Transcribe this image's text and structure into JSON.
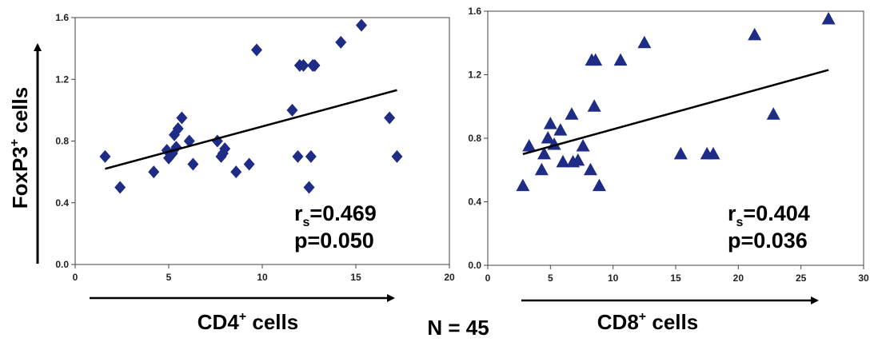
{
  "chart_data": [
    {
      "type": "scatter",
      "marker": "diamond",
      "marker_color": "#1f2c86",
      "xlabel_main": "CD4",
      "xlabel_sup": "+",
      "xlabel_rest": " cells",
      "xlim": [
        0,
        20
      ],
      "ylim": [
        0,
        1.6
      ],
      "x_ticks": [
        "0",
        "5",
        "10",
        "15",
        "20"
      ],
      "y_ticks": [
        "0.0",
        "0.4",
        "0.8",
        "1.2",
        "1.6"
      ],
      "x": [
        1.6,
        2.4,
        4.2,
        4.9,
        5.0,
        5.2,
        5.3,
        5.4,
        5.5,
        5.7,
        6.1,
        6.3,
        7.6,
        7.8,
        7.9,
        8.0,
        8.6,
        9.3,
        9.7,
        11.6,
        11.9,
        12.0,
        12.2,
        12.5,
        12.6,
        12.7,
        12.8,
        14.2,
        15.3,
        16.8,
        17.2
      ],
      "y": [
        0.7,
        0.5,
        0.6,
        0.74,
        0.69,
        0.72,
        0.84,
        0.76,
        0.88,
        0.95,
        0.8,
        0.65,
        0.8,
        0.7,
        0.72,
        0.75,
        0.6,
        0.65,
        1.39,
        1.0,
        0.7,
        1.29,
        1.29,
        0.5,
        0.7,
        1.29,
        1.29,
        1.44,
        1.55,
        0.95,
        0.7
      ],
      "fit_line": {
        "x": [
          1.6,
          17.2
        ],
        "y": [
          0.62,
          1.13
        ]
      },
      "stat_label": "r",
      "stat_sub": "s",
      "stat_value": "=0.469",
      "p_value": "p=0.050"
    },
    {
      "type": "scatter",
      "marker": "triangle",
      "marker_color": "#1f2c86",
      "xlabel_main": "CD8",
      "xlabel_sup": "+",
      "xlabel_rest": " cells",
      "xlim": [
        0,
        30
      ],
      "ylim": [
        0,
        1.6
      ],
      "x_ticks": [
        "0",
        "5",
        "10",
        "15",
        "20",
        "25",
        "30"
      ],
      "y_ticks": [
        "0.0",
        "0.4",
        "0.8",
        "1.2",
        "1.6"
      ],
      "x": [
        2.8,
        3.3,
        4.3,
        4.5,
        4.8,
        5.0,
        5.3,
        5.8,
        6.0,
        6.7,
        6.8,
        7.2,
        7.6,
        8.2,
        8.3,
        8.5,
        8.6,
        8.9,
        10.6,
        12.5,
        15.4,
        17.5,
        18.0,
        21.3,
        22.8,
        27.2
      ],
      "y": [
        0.5,
        0.75,
        0.6,
        0.7,
        0.8,
        0.89,
        0.76,
        0.85,
        0.65,
        0.95,
        0.65,
        0.66,
        0.75,
        0.6,
        1.29,
        1.0,
        1.29,
        0.5,
        1.29,
        1.4,
        0.7,
        0.7,
        0.7,
        1.45,
        0.95,
        1.55
      ],
      "fit_line": {
        "x": [
          2.8,
          27.2
        ],
        "y": [
          0.7,
          1.23
        ]
      },
      "stat_label": "r",
      "stat_sub": "s",
      "stat_value": "=0.404",
      "p_value": "p=0.036"
    }
  ],
  "y_axis_title": {
    "main": "FoxP3",
    "sup": "+",
    "rest": " cells"
  },
  "footer": {
    "n_label": "N = 45"
  }
}
